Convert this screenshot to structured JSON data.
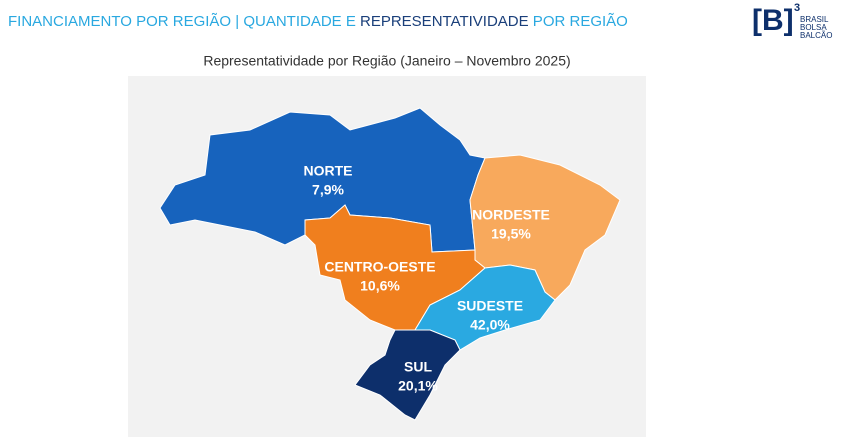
{
  "header": {
    "title_parts": [
      {
        "text": "FINANCIAMENTO POR REGIÃO | QUANTIDADE E ",
        "color": "#29a8e0"
      },
      {
        "text": "REPRESENTATIVIDADE",
        "color": "#1a3f7a"
      },
      {
        "text": " POR REGIÃO",
        "color": "#29a8e0"
      }
    ],
    "logo": {
      "mark": "[B]",
      "superscript": "3",
      "lines": [
        "BRASIL",
        "BOLSA",
        "BALCÃO"
      ]
    }
  },
  "chart_data": {
    "type": "map",
    "title": "Representatividade por Região (Janeiro – Novembro 2025)",
    "series": [
      {
        "categories": [
          "NORTE",
          "NORDESTE",
          "CENTRO-OESTE",
          "SUDESTE",
          "SUL"
        ],
        "values": [
          7.9,
          19.5,
          10.6,
          42.0,
          20.1
        ],
        "value_labels": [
          "7,9%",
          "19,5%",
          "10,6%",
          "42,0%",
          "20,1%"
        ],
        "colors": [
          "#1763bd",
          "#f8a95c",
          "#f07f1e",
          "#2aa9e1",
          "#0d2f6b"
        ]
      }
    ]
  }
}
